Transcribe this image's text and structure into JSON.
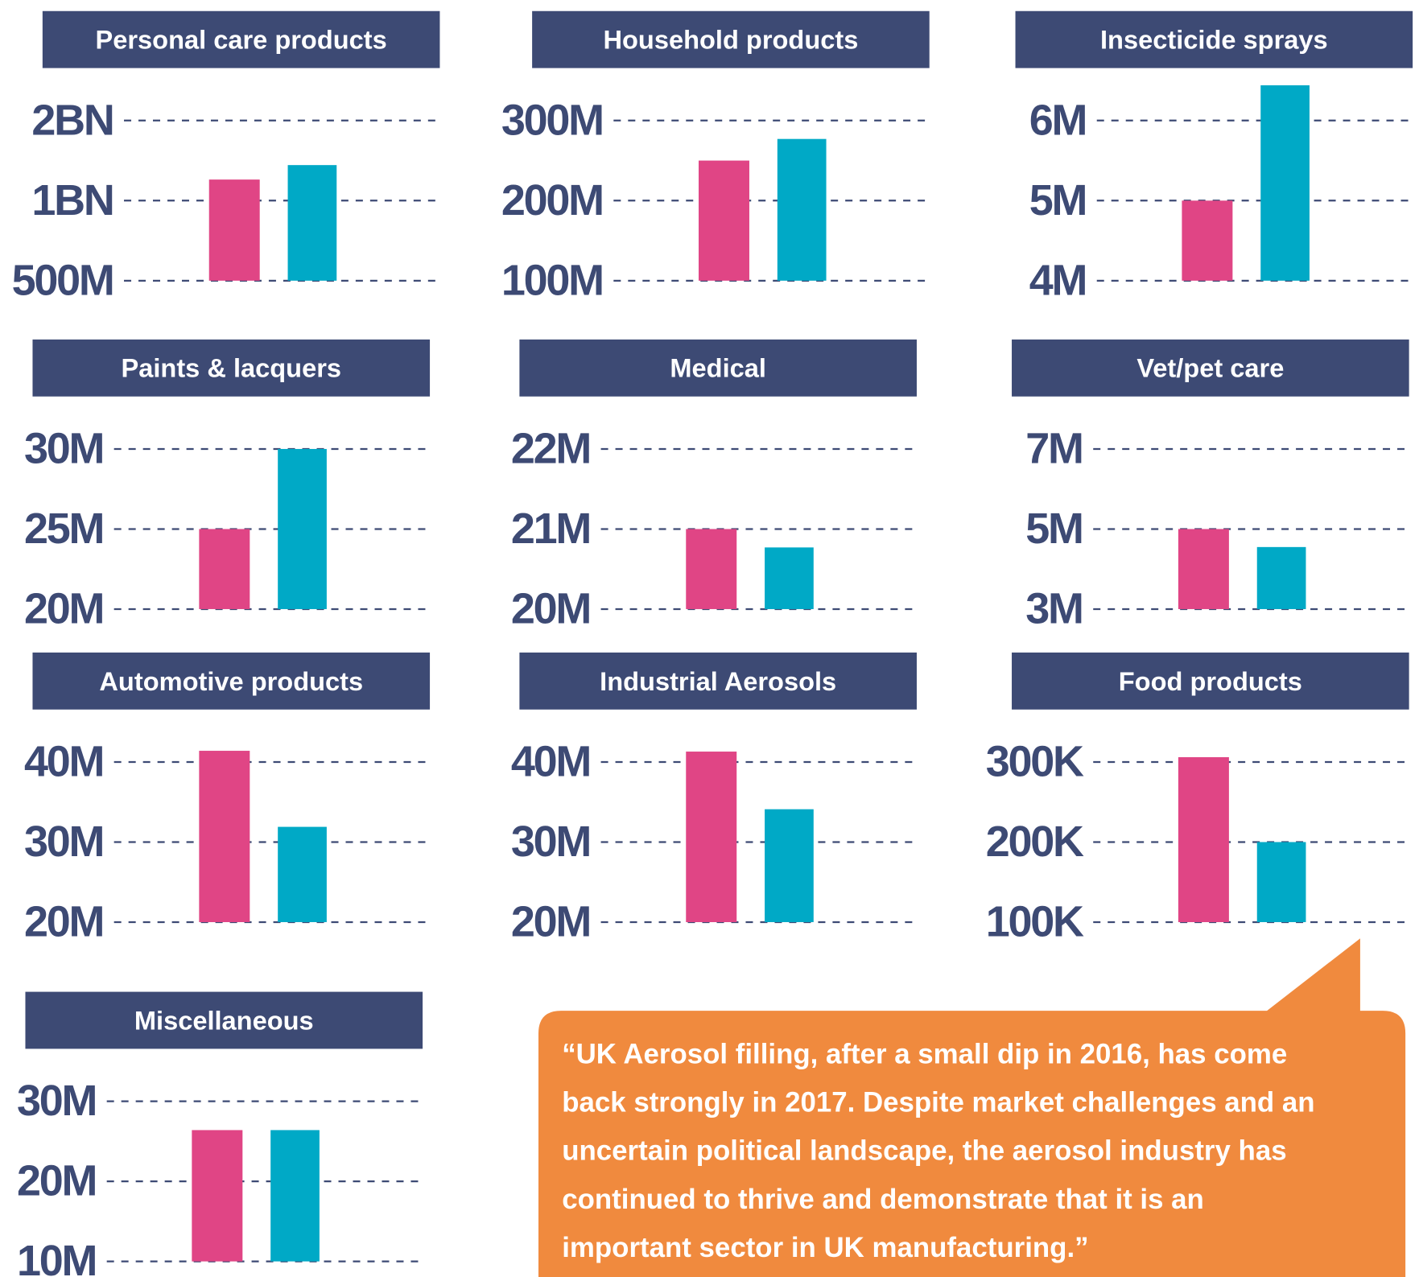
{
  "chart_data": [
    {
      "type": "bar",
      "title": "Personal care products",
      "log": true,
      "values": [
        1200000000,
        1360000000
      ],
      "colors": [
        "#e04585",
        "#00a9c6"
      ],
      "ylim": [
        500000000,
        2000000000
      ],
      "yticks": [
        {
          "value": 500000000,
          "label": "500M"
        },
        {
          "value": 1000000000,
          "label": "1BN"
        },
        {
          "value": 2000000000,
          "label": "2BN"
        }
      ],
      "grid": true
    },
    {
      "type": "bar",
      "title": "Household products",
      "values": [
        250000000,
        277000000
      ],
      "colors": [
        "#e04585",
        "#00a9c6"
      ],
      "ylim": [
        100000000,
        300000000
      ],
      "yticks": [
        {
          "value": 100000000,
          "label": "100M"
        },
        {
          "value": 200000000,
          "label": "200M"
        },
        {
          "value": 300000000,
          "label": "300M"
        }
      ],
      "grid": true
    },
    {
      "type": "bar",
      "title": "Insecticide sprays",
      "values": [
        5000000,
        6440000
      ],
      "colors": [
        "#e04585",
        "#00a9c6"
      ],
      "ylim": [
        4000000,
        6000000
      ],
      "yticks": [
        {
          "value": 4000000,
          "label": "4M"
        },
        {
          "value": 5000000,
          "label": "5M"
        },
        {
          "value": 6000000,
          "label": "6M"
        }
      ],
      "grid": true
    },
    {
      "type": "bar",
      "title": "Paints & lacquers",
      "values": [
        25000000,
        30000000
      ],
      "colors": [
        "#e04585",
        "#00a9c6"
      ],
      "ylim": [
        20000000,
        30000000
      ],
      "yticks": [
        {
          "value": 20000000,
          "label": "20M"
        },
        {
          "value": 25000000,
          "label": "25M"
        },
        {
          "value": 30000000,
          "label": "30M"
        }
      ],
      "grid": true
    },
    {
      "type": "bar",
      "title": "Medical",
      "values": [
        21000000,
        20770000
      ],
      "colors": [
        "#e04585",
        "#00a9c6"
      ],
      "ylim": [
        20000000,
        22000000
      ],
      "yticks": [
        {
          "value": 20000000,
          "label": "20M"
        },
        {
          "value": 21000000,
          "label": "21M"
        },
        {
          "value": 22000000,
          "label": "22M"
        }
      ],
      "grid": true
    },
    {
      "type": "bar",
      "title": "Vet/pet care",
      "values": [
        5000000,
        4550000
      ],
      "colors": [
        "#e04585",
        "#00a9c6"
      ],
      "ylim": [
        3000000,
        7000000
      ],
      "yticks": [
        {
          "value": 3000000,
          "label": "3M"
        },
        {
          "value": 5000000,
          "label": "5M"
        },
        {
          "value": 7000000,
          "label": "7M"
        }
      ],
      "grid": true
    },
    {
      "type": "bar",
      "title": "Automotive products",
      "values": [
        41400000,
        31900000
      ],
      "colors": [
        "#e04585",
        "#00a9c6"
      ],
      "ylim": [
        20000000,
        40000000
      ],
      "yticks": [
        {
          "value": 20000000,
          "label": "20M"
        },
        {
          "value": 30000000,
          "label": "30M"
        },
        {
          "value": 40000000,
          "label": "40M"
        }
      ],
      "grid": true
    },
    {
      "type": "bar",
      "title": "Industrial Aerosols",
      "values": [
        41300000,
        34100000
      ],
      "colors": [
        "#e04585",
        "#00a9c6"
      ],
      "ylim": [
        20000000,
        40000000
      ],
      "yticks": [
        {
          "value": 20000000,
          "label": "20M"
        },
        {
          "value": 30000000,
          "label": "30M"
        },
        {
          "value": 40000000,
          "label": "40M"
        }
      ],
      "grid": true
    },
    {
      "type": "bar",
      "title": "Food products",
      "values": [
        306000,
        200000
      ],
      "colors": [
        "#e04585",
        "#00a9c6"
      ],
      "ylim": [
        100000,
        300000
      ],
      "yticks": [
        {
          "value": 100000,
          "label": "100K"
        },
        {
          "value": 200000,
          "label": "200K"
        },
        {
          "value": 300000,
          "label": "300K"
        }
      ],
      "grid": true
    },
    {
      "type": "bar",
      "title": "Miscellaneous",
      "values": [
        26400000,
        26400000
      ],
      "colors": [
        "#e04585",
        "#00a9c6"
      ],
      "ylim": [
        10000000,
        30000000
      ],
      "yticks": [
        {
          "value": 10000000,
          "label": "10M"
        },
        {
          "value": 20000000,
          "label": "20M"
        },
        {
          "value": 30000000,
          "label": "30M"
        }
      ],
      "grid": true
    }
  ],
  "callout": {
    "lines": [
      "“UK Aerosol filling, after a small dip in 2016, has come",
      "back strongly in 2017. Despite market challenges and an",
      "uncertain political landscape, the aerosol industry has",
      "continued to thrive and demonstrate that it is an",
      "important sector in UK manufacturing.”"
    ]
  }
}
